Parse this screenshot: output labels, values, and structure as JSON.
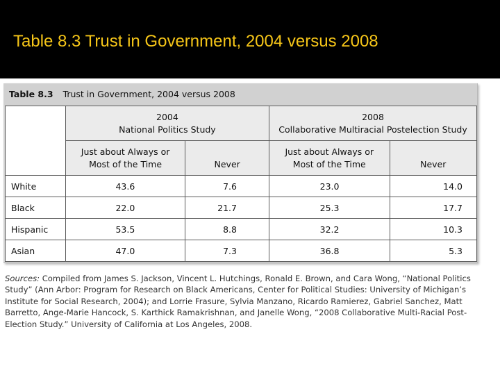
{
  "slide": {
    "title": "Table 8.3 Trust in Government, 2004 versus 2008"
  },
  "table": {
    "caption_label": "Table 8.3",
    "caption_text": "Trust in Government, 2004 versus 2008",
    "group_2004": {
      "year": "2004",
      "name": "National Politics Study"
    },
    "group_2008": {
      "year": "2008",
      "name": "Collaborative Multiracial Postelection Study"
    },
    "col_always_line1": "Just about Always or",
    "col_always_line2": "Most of the Time",
    "col_never": "Never",
    "rows": [
      {
        "label": "White",
        "always_2004": "43.6",
        "never_2004": "7.6",
        "always_2008": "23.0",
        "never_2008": "14.0"
      },
      {
        "label": "Black",
        "always_2004": "22.0",
        "never_2004": "21.7",
        "always_2008": "25.3",
        "never_2008": "17.7"
      },
      {
        "label": "Hispanic",
        "always_2004": "53.5",
        "never_2004": "8.8",
        "always_2008": "32.2",
        "never_2008": "10.3"
      },
      {
        "label": "Asian",
        "always_2004": "47.0",
        "never_2004": "7.3",
        "always_2008": "36.8",
        "never_2008": "5.3"
      }
    ]
  },
  "sources": {
    "label": "Sources:",
    "text": " Compiled from James S. Jackson, Vincent L. Hutchings, Ronald E. Brown, and Cara Wong, “National Politics Study” (Ann Arbor: Program for Research on Black Americans, Center for Political Studies: University of Michigan’s Institute for Social Research, 2004); and Lorrie Frasure, Sylvia Manzano, Ricardo Ramierez, Gabriel Sanchez, Matt Barretto, Ange-Marie Hancock, S. Karthick Ramakrishnan, and Janelle Wong, “2008 Collaborative Multi-Racial Post-Election Study.” University of California at Los Angeles, 2008."
  }
}
